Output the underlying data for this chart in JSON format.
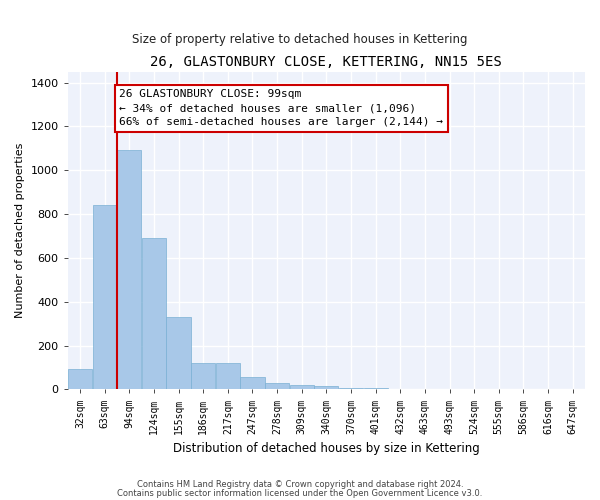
{
  "title": "26, GLASTONBURY CLOSE, KETTERING, NN15 5ES",
  "subtitle": "Size of property relative to detached houses in Kettering",
  "xlabel": "Distribution of detached houses by size in Kettering",
  "ylabel": "Number of detached properties",
  "bar_color": "#a8c8e8",
  "bar_edge_color": "#7ab0d4",
  "background_color": "#eef2fb",
  "grid_color": "#ffffff",
  "bins": [
    "32sqm",
    "63sqm",
    "94sqm",
    "124sqm",
    "155sqm",
    "186sqm",
    "217sqm",
    "247sqm",
    "278sqm",
    "309sqm",
    "340sqm",
    "370sqm",
    "401sqm",
    "432sqm",
    "463sqm",
    "493sqm",
    "524sqm",
    "555sqm",
    "586sqm",
    "616sqm",
    "647sqm"
  ],
  "values": [
    95,
    840,
    1090,
    690,
    330,
    120,
    120,
    55,
    27,
    22,
    15,
    8,
    5,
    0,
    0,
    0,
    0,
    0,
    0,
    0,
    0
  ],
  "ylim": [
    0,
    1450
  ],
  "yticks": [
    0,
    200,
    400,
    600,
    800,
    1000,
    1200,
    1400
  ],
  "annotation_text": "26 GLASTONBURY CLOSE: 99sqm\n← 34% of detached houses are smaller (1,096)\n66% of semi-detached houses are larger (2,144) →",
  "annotation_box_color": "#ffffff",
  "annotation_box_edge_color": "#cc0000",
  "property_line_color": "#cc0000",
  "footer_line1": "Contains HM Land Registry data © Crown copyright and database right 2024.",
  "footer_line2": "Contains public sector information licensed under the Open Government Licence v3.0."
}
